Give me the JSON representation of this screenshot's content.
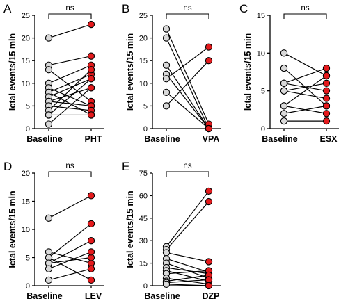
{
  "colors": {
    "baseline_fill": "#d9d9d9",
    "treatment_fill": "#e41a1c",
    "marker_stroke": "#000000"
  },
  "chart_data": [
    {
      "panel": "A",
      "type": "scatter",
      "ylabel": "Ictal events/15 min",
      "categories": [
        "Baseline",
        "PHT"
      ],
      "ylim": [
        0,
        25
      ],
      "yticks": [
        0,
        5,
        10,
        15,
        20,
        25
      ],
      "significance": "ns",
      "pairs": [
        [
          20,
          23
        ],
        [
          14,
          16
        ],
        [
          13,
          6
        ],
        [
          10,
          14
        ],
        [
          9,
          5
        ],
        [
          8,
          12
        ],
        [
          8,
          3
        ],
        [
          7,
          11
        ],
        [
          6,
          5
        ],
        [
          6,
          9
        ],
        [
          5,
          4
        ],
        [
          4,
          13
        ],
        [
          3,
          3
        ],
        [
          3,
          11
        ],
        [
          1,
          9
        ]
      ]
    },
    {
      "panel": "B",
      "type": "scatter",
      "ylabel": "Ictal events/15 min",
      "categories": [
        "Baseline",
        "VPA"
      ],
      "ylim": [
        0,
        25
      ],
      "yticks": [
        0,
        5,
        10,
        15,
        20,
        25
      ],
      "significance": "ns",
      "pairs": [
        [
          22,
          1
        ],
        [
          20,
          0
        ],
        [
          14,
          0
        ],
        [
          12,
          0
        ],
        [
          11,
          18
        ],
        [
          8,
          0
        ],
        [
          5,
          15
        ]
      ]
    },
    {
      "panel": "C",
      "type": "scatter",
      "ylabel": "Ictal events/15 min",
      "categories": [
        "Baseline",
        "ESX"
      ],
      "ylim": [
        0,
        15
      ],
      "yticks": [
        0,
        5,
        10,
        15
      ],
      "significance": "ns",
      "pairs": [
        [
          10,
          7
        ],
        [
          8,
          3
        ],
        [
          6,
          8
        ],
        [
          6,
          5
        ],
        [
          5,
          6
        ],
        [
          5,
          4
        ],
        [
          3,
          7
        ],
        [
          2,
          3
        ],
        [
          1,
          1
        ],
        [
          3,
          2
        ]
      ]
    },
    {
      "panel": "D",
      "type": "scatter",
      "ylabel": "Ictal events/15 min",
      "categories": [
        "Baseline",
        "LEV"
      ],
      "ylim": [
        0,
        20
      ],
      "yticks": [
        0,
        5,
        10,
        15,
        20
      ],
      "significance": "ns",
      "pairs": [
        [
          12,
          16
        ],
        [
          6,
          4
        ],
        [
          5,
          11
        ],
        [
          5,
          1
        ],
        [
          4,
          8
        ],
        [
          4,
          5
        ],
        [
          3,
          6
        ],
        [
          1,
          3
        ]
      ]
    },
    {
      "panel": "E",
      "type": "scatter",
      "ylabel": "Ictal events/15 min",
      "categories": [
        "Baseline",
        "DZP"
      ],
      "ylim": [
        0,
        75
      ],
      "yticks": [
        0,
        15,
        30,
        45,
        60,
        75
      ],
      "significance": "ns",
      "pairs": [
        [
          26,
          63
        ],
        [
          24,
          56
        ],
        [
          22,
          16
        ],
        [
          18,
          9
        ],
        [
          15,
          5
        ],
        [
          12,
          8
        ],
        [
          10,
          3
        ],
        [
          8,
          10
        ],
        [
          5,
          1
        ],
        [
          3,
          7
        ],
        [
          2,
          4
        ],
        [
          1,
          0
        ]
      ]
    }
  ]
}
